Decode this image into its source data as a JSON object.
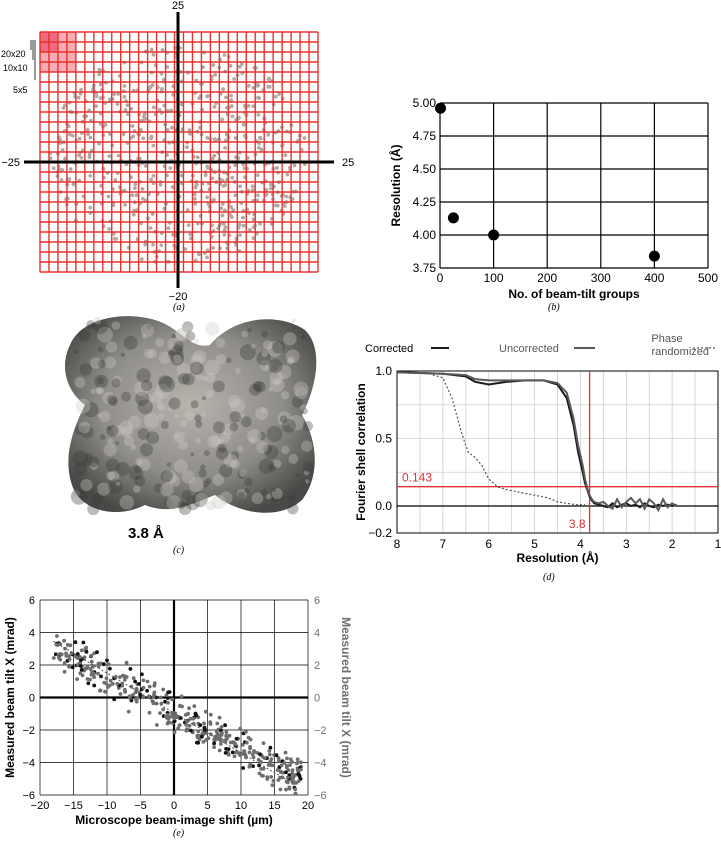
{
  "colors": {
    "grid_red": "#e8312f",
    "highlight_dark": "#f06b7e",
    "highlight_light": "#f8aab5",
    "scatter_gray": "#b3a9a6",
    "map_gray": "#8d8b87",
    "corrected": "#1a1a1a",
    "uncorrected": "#5a5a5a",
    "threshold_red": "#e03030",
    "axis_right_gray": "#707070"
  },
  "chart_data": [
    {
      "id": "a",
      "type": "scatter",
      "caption": "(a)",
      "axis_labels": {
        "top": "25",
        "bottom": "−20",
        "left": "−25",
        "right": "25"
      },
      "xlim": [
        -25,
        25
      ],
      "ylim": [
        -20,
        25
      ],
      "grid_cells": [
        31,
        24
      ],
      "block_labels": [
        "20x20",
        "10x10",
        "5x5"
      ],
      "points": 780
    },
    {
      "id": "b",
      "type": "scatter",
      "caption": "(b)",
      "xlabel": "No. of beam-tilt groups",
      "ylabel": "Resolution (Å)",
      "xlim": [
        0,
        500
      ],
      "ylim": [
        3.75,
        5.0
      ],
      "xticks": [
        "0",
        "100",
        "200",
        "300",
        "400",
        "500"
      ],
      "yticks": [
        "3.75",
        "4.00",
        "4.25",
        "4.50",
        "4.75",
        "5.00"
      ],
      "x": [
        1,
        25,
        100,
        400
      ],
      "y": [
        4.96,
        4.13,
        4.0,
        3.84
      ],
      "grid": true
    },
    {
      "id": "c",
      "type": "image",
      "caption": "(c)",
      "label": "3.8 Å"
    },
    {
      "id": "d",
      "type": "line",
      "caption": "(d)",
      "xlabel": "Resolution (Å)",
      "ylabel": "Fourier shell correlation",
      "xlim": [
        8,
        1
      ],
      "ylim": [
        -0.2,
        1.0
      ],
      "xticks": [
        "8",
        "7",
        "6",
        "5",
        "4",
        "3",
        "2",
        "1"
      ],
      "yticks": [
        "1.0",
        "0.5",
        "0.0",
        "−0.2"
      ],
      "legend": [
        "Corrected",
        "Uncorrected",
        "Phase randomized"
      ],
      "threshold_label": "0.143",
      "resolution_label": "3.8",
      "threshold": 0.143,
      "resolution": 3.8,
      "series": [
        {
          "name": "Corrected",
          "x": [
            8,
            7.0,
            6.5,
            6.3,
            6.0,
            5.6,
            5.2,
            4.8,
            4.5,
            4.3,
            4.15,
            4.05,
            3.95,
            3.9,
            3.85,
            3.8,
            3.75,
            3.7,
            3.6,
            3.5,
            3.4,
            3.3,
            3.2,
            3.1,
            3.0,
            2.9,
            2.8,
            2.7,
            2.6,
            2.5,
            2.4,
            2.3,
            2.2,
            2.1,
            2.0,
            1.9
          ],
          "y": [
            0.99,
            0.98,
            0.96,
            0.92,
            0.9,
            0.92,
            0.93,
            0.93,
            0.9,
            0.8,
            0.6,
            0.4,
            0.25,
            0.17,
            0.12,
            0.07,
            0.04,
            0.02,
            0.01,
            0.0,
            -0.01,
            0.02,
            -0.01,
            0.01,
            0.02,
            0.0,
            0.01,
            -0.01,
            0.02,
            0.0,
            -0.01,
            0.01,
            0.0,
            0.01,
            0.0,
            0.01
          ]
        },
        {
          "name": "Uncorrected",
          "x": [
            8,
            7.0,
            6.5,
            6.3,
            6.0,
            5.6,
            5.2,
            4.8,
            4.5,
            4.3,
            4.15,
            4.05,
            3.95,
            3.9,
            3.85,
            3.8,
            3.75,
            3.7,
            3.6,
            3.5,
            3.4,
            3.3,
            3.2,
            3.1,
            3.0,
            2.9,
            2.8,
            2.7,
            2.6,
            2.5,
            2.4,
            2.3,
            2.2,
            2.1,
            2.0,
            1.9
          ],
          "y": [
            0.99,
            0.98,
            0.97,
            0.94,
            0.93,
            0.93,
            0.93,
            0.93,
            0.91,
            0.84,
            0.65,
            0.45,
            0.3,
            0.2,
            0.13,
            0.08,
            0.05,
            0.03,
            0.02,
            0.03,
            0.0,
            -0.02,
            0.05,
            -0.01,
            0.03,
            0.06,
            0.02,
            0.05,
            -0.02,
            0.05,
            0.02,
            -0.03,
            0.05,
            -0.01,
            0.02,
            0.0
          ]
        },
        {
          "name": "Phase randomized",
          "x": [
            8,
            7.3,
            7.0,
            6.8,
            6.6,
            6.45,
            6.3,
            6.15,
            6.0,
            5.8,
            5.6,
            5.3,
            5.0,
            4.7,
            4.5,
            4.3,
            4.1,
            3.9
          ],
          "y": [
            0.99,
            0.98,
            0.95,
            0.8,
            0.55,
            0.4,
            0.36,
            0.3,
            0.2,
            0.14,
            0.12,
            0.1,
            0.08,
            0.06,
            0.03,
            0.02,
            0.01,
            0.01
          ]
        }
      ]
    },
    {
      "id": "e",
      "type": "scatter",
      "caption": "(e)",
      "xlabel": "Microscope beam-image shift (µm)",
      "ylabel_left": "Measured beam tilt X (mrad)",
      "ylabel_right": "Measured beam tilt X (mrad)",
      "xlim": [
        -20,
        20
      ],
      "ylim": [
        -6,
        6
      ],
      "xticks": [
        "−20",
        "−15",
        "−10",
        "−5",
        "0",
        "5",
        "10",
        "15",
        "20"
      ],
      "yticks": [
        "6",
        "4",
        "2",
        "0",
        "−2",
        "−4",
        "−6"
      ],
      "trend": {
        "slope": -0.22,
        "intercept": -0.9
      },
      "points": 420
    }
  ]
}
